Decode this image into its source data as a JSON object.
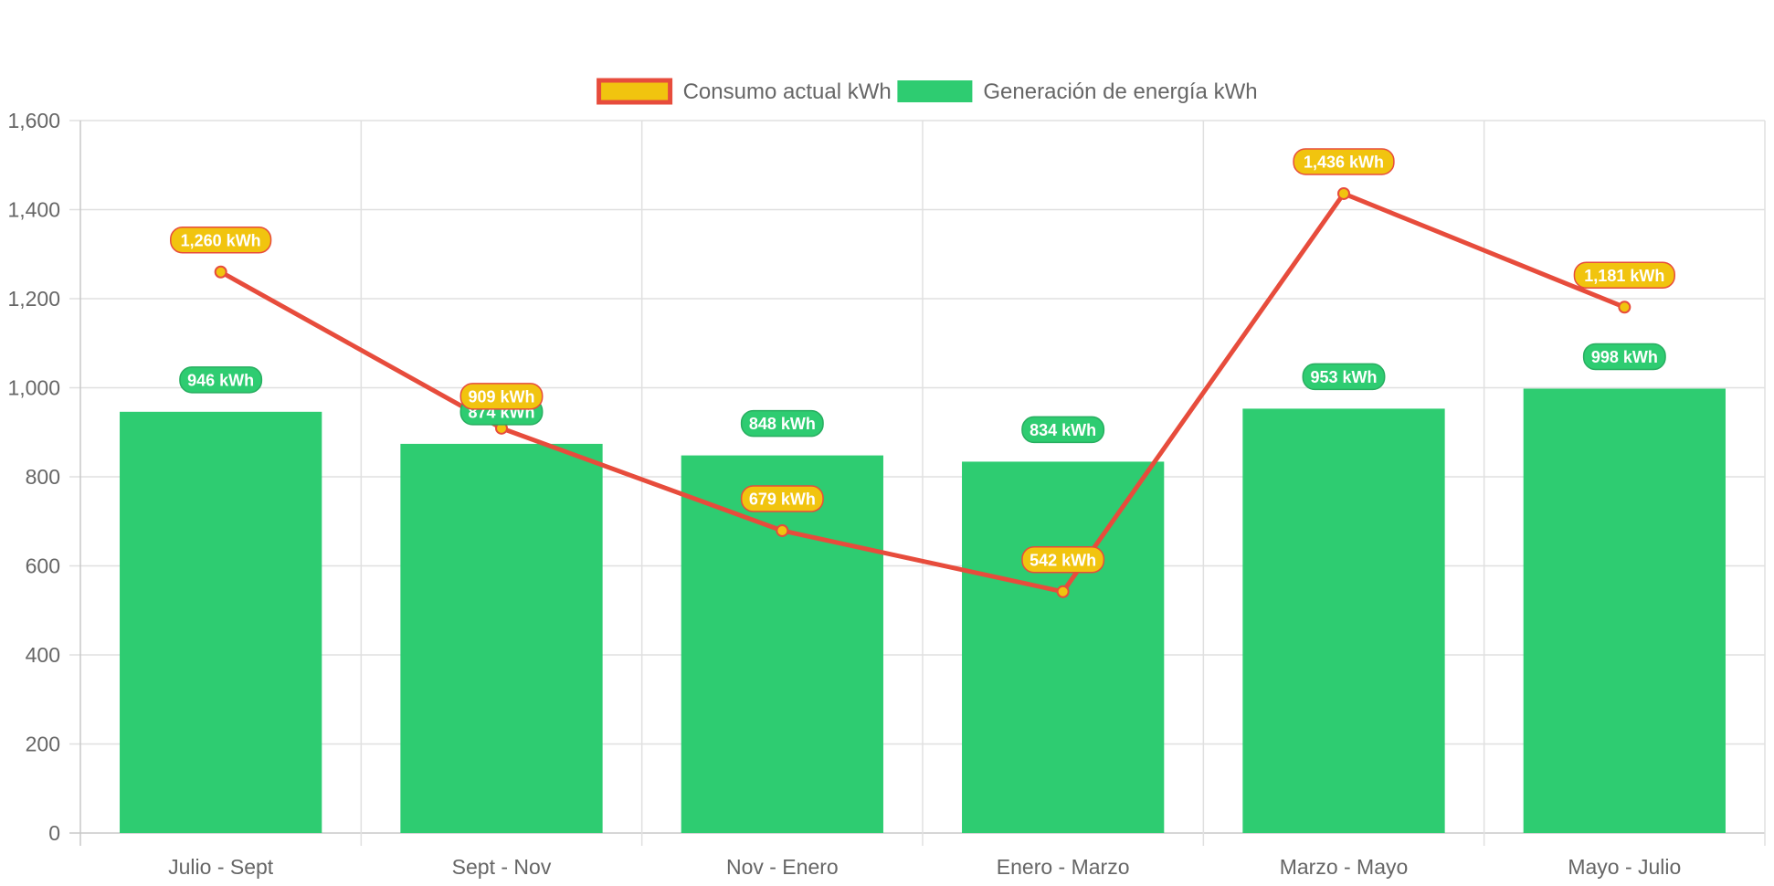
{
  "chart_data": {
    "type": "bar",
    "title": "",
    "xlabel": "",
    "ylabel": "",
    "categories": [
      "Julio - Sept",
      "Sept - Nov",
      "Nov - Enero",
      "Enero - Marzo",
      "Marzo - Mayo",
      "Mayo - Julio"
    ],
    "ylim": [
      0,
      1600
    ],
    "yticks": [
      "0",
      "200",
      "400",
      "600",
      "800",
      "1,000",
      "1,200",
      "1,400",
      "1,600"
    ],
    "grid": true,
    "legend_position": "top",
    "series": [
      {
        "name": "Consumo actual kWh",
        "type": "line",
        "values": [
          1260,
          909,
          679,
          542,
          1436,
          1181
        ],
        "labels": [
          "1,260 kWh",
          "909 kWh",
          "679 kWh",
          "542 kWh",
          "1,436 kWh",
          "1,181 kWh"
        ],
        "color": "#e74c3c",
        "fill": "#f1c40f"
      },
      {
        "name": "Generación de energía kWh",
        "type": "bar",
        "values": [
          946,
          874,
          848,
          834,
          953,
          998
        ],
        "labels": [
          "946 kWh",
          "874 kWh",
          "848 kWh",
          "834 kWh",
          "953 kWh",
          "998 kWh"
        ],
        "color": "#2ecc71",
        "fill": "#2ecc71"
      }
    ]
  }
}
